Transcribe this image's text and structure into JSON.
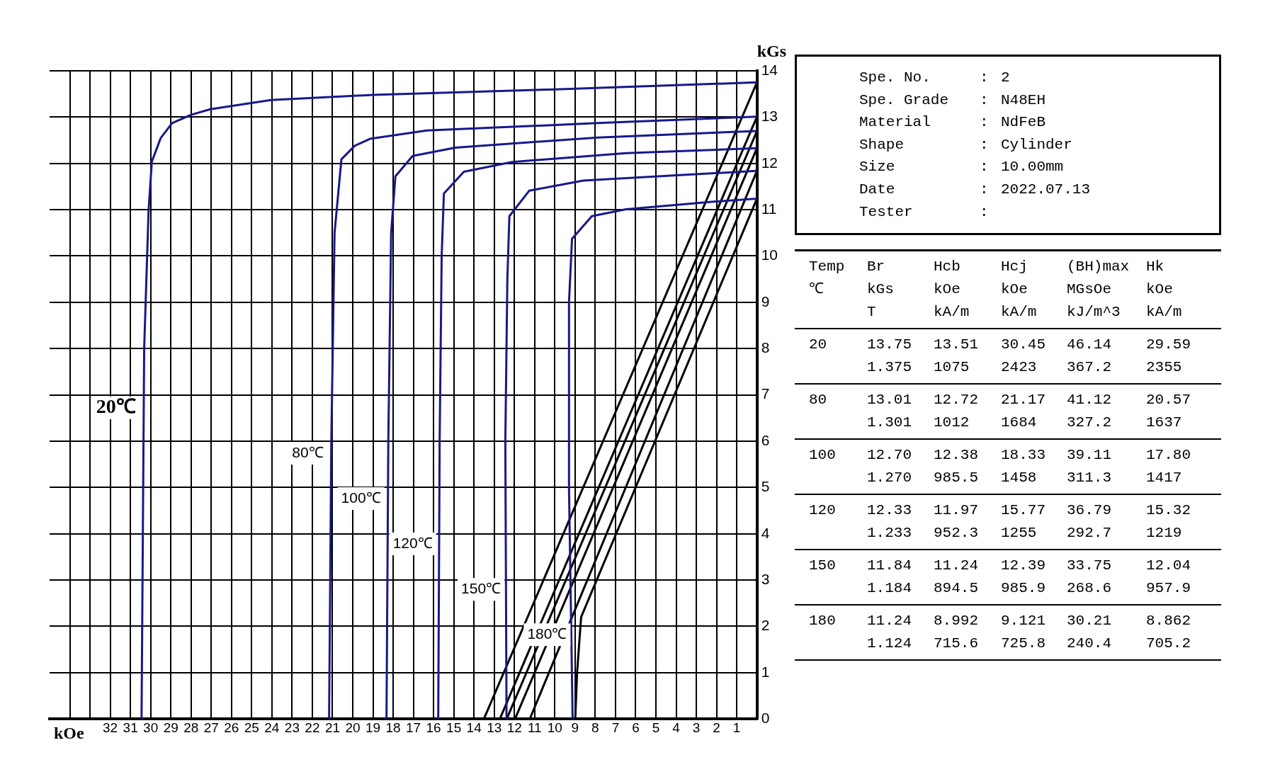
{
  "chart_data": [
    {
      "type": "line",
      "xlabel": "kOe",
      "ylabel": "kGs",
      "marker": "none",
      "line_style": "solid",
      "grid": true,
      "legend": false,
      "xlim": [
        35,
        0
      ],
      "ylim": [
        0,
        14
      ],
      "xticks": [
        {
          "value": 0,
          "label": null
        },
        1,
        2,
        3,
        4,
        5,
        6,
        7,
        8,
        9,
        10,
        11,
        12,
        13,
        14,
        15,
        16,
        17,
        18,
        19,
        20,
        21,
        22,
        23,
        24,
        25,
        26,
        27,
        28,
        29,
        30,
        31,
        32,
        {
          "value": 33,
          "label": null
        },
        {
          "value": 34,
          "label": null
        }
      ],
      "yticks": [
        0,
        1,
        2,
        3,
        4,
        5,
        6,
        7,
        8,
        9,
        10,
        11,
        12,
        13,
        14
      ],
      "series": [
        {
          "name": "20℃",
          "color": "#18188c",
          "x": [
            30.45,
            30.32,
            30.1,
            29.94,
            29.5,
            28.94,
            28.0,
            27.05,
            24.05,
            19.0,
            10.0,
            0
          ],
          "values": [
            0,
            8.0,
            11.0,
            12.04,
            12.55,
            12.87,
            13.05,
            13.17,
            13.37,
            13.48,
            13.6,
            13.75
          ]
        },
        {
          "name": "80℃",
          "color": "#18188c",
          "x": [
            21.17,
            21.06,
            20.9,
            20.56,
            19.9,
            19.15,
            16.34,
            7.89,
            0
          ],
          "values": [
            0,
            6.0,
            10.5,
            12.09,
            12.38,
            12.53,
            12.71,
            12.87,
            13.01
          ]
        },
        {
          "name": "100℃",
          "color": "#18188c",
          "x": [
            18.33,
            18.24,
            18.1,
            17.89,
            17.04,
            14.93,
            7.89,
            0
          ],
          "values": [
            0,
            6.0,
            10.5,
            11.72,
            12.16,
            12.34,
            12.56,
            12.7
          ]
        },
        {
          "name": "120℃",
          "color": "#18188c",
          "x": [
            15.77,
            15.7,
            15.6,
            15.49,
            14.5,
            12.11,
            6.48,
            0
          ],
          "values": [
            0,
            6.0,
            10.0,
            11.35,
            11.82,
            12.03,
            12.22,
            12.33
          ]
        },
        {
          "name": "150℃",
          "color": "#18188c",
          "x": [
            12.39,
            12.45,
            12.35,
            12.25,
            11.27,
            8.59,
            3.66,
            0
          ],
          "values": [
            0,
            6.0,
            9.5,
            10.86,
            11.41,
            11.63,
            11.75,
            11.84
          ]
        },
        {
          "name": "180℃",
          "color": "#18188c",
          "x": [
            9.12,
            9.3,
            9.3,
            9.15,
            8.17,
            6.48,
            2.25,
            0
          ],
          "values": [
            0,
            5.0,
            9.0,
            10.37,
            10.86,
            11.01,
            11.17,
            11.24
          ]
        },
        {
          "color": "#000000",
          "x": [
            13.51,
            0
          ],
          "values": [
            0,
            13.75
          ]
        },
        {
          "color": "#000000",
          "x": [
            12.72,
            0
          ],
          "values": [
            0,
            13.01
          ]
        },
        {
          "color": "#000000",
          "x": [
            12.38,
            0
          ],
          "values": [
            0,
            12.7
          ]
        },
        {
          "color": "#000000",
          "x": [
            11.97,
            0
          ],
          "values": [
            0,
            12.33
          ]
        },
        {
          "color": "#000000",
          "x": [
            11.24,
            0
          ],
          "values": [
            0,
            11.84
          ]
        },
        {
          "color": "#000000",
          "x": [
            8.99,
            8.9,
            8.7,
            0
          ],
          "values": [
            0,
            1.0,
            2.2,
            11.24
          ]
        }
      ]
    },
    {
      "type": "other",
      "annotations": [
        "Spe. No.\t:\t2",
        "Spe. Grade\t:\tN48EH",
        "Material\t:\tNdFeB",
        "Shape\t:\tCylinder",
        "Size\t:\t10.00mm",
        "Date\t:\t2022.07.13",
        "Tester\t:\t"
      ]
    },
    {
      "type": "other",
      "annotations": [
        "Temp\tBr\tHcb\tHcj\t(BH)max\tHk\n℃\tkGs\tkOe\tkOe\tMGsOe\tkOe\n\tT\tkA/m\tkA/m\tkJ/m^3\tkA/m",
        "20\t13.75\t13.51\t30.45\t46.14\t29.59\n\t1.375\t1075\t2423\t367.2\t2355",
        "80\t13.01\t12.72\t21.17\t41.12\t20.57\n\t1.301\t1012\t1684\t327.2\t1637",
        "100\t12.70\t12.38\t18.33\t39.11\t17.80\n\t1.270\t985.5\t1458\t311.3\t1417",
        "120\t12.33\t11.97\t15.77\t36.79\t15.32\n\t1.233\t952.3\t1255\t292.7\t1219",
        "150\t11.84\t11.24\t12.39\t33.75\t12.04\n\t1.184\t894.5\t985.9\t268.6\t957.9",
        "180\t11.24\t8.992\t9.121\t30.21\t8.862\n\t1.124\t715.6\t725.8\t240.4\t705.2"
      ]
    }
  ]
}
